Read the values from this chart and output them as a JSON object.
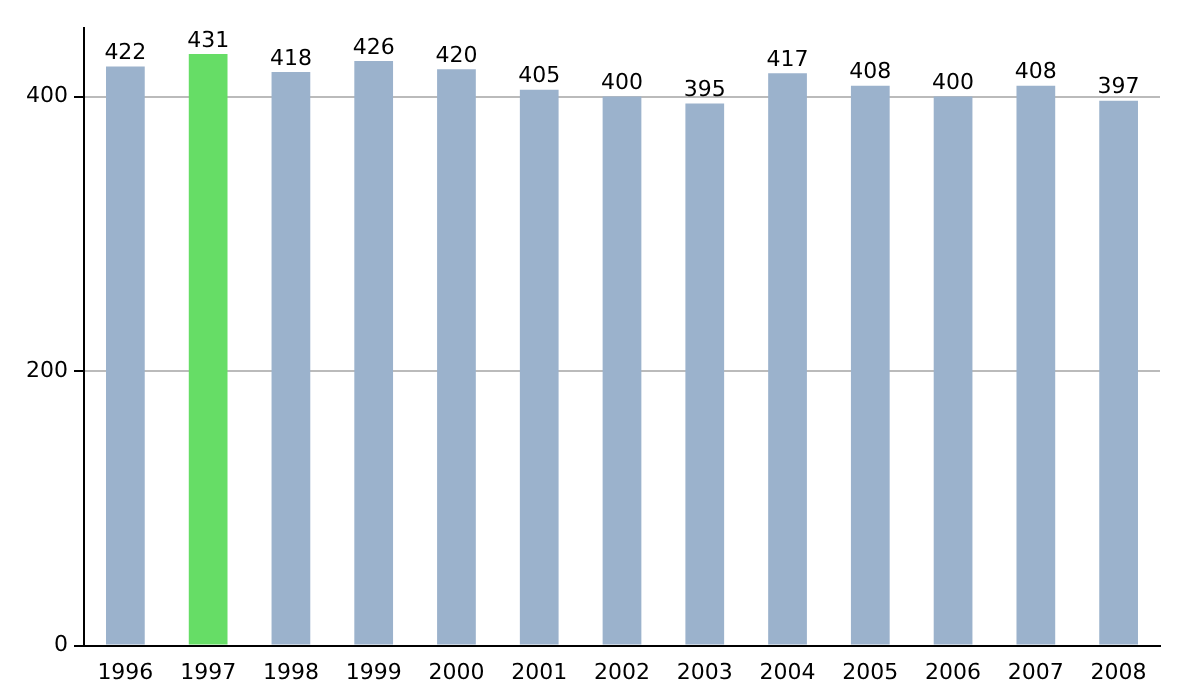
{
  "chart_data": {
    "type": "bar",
    "categories": [
      "1996",
      "1997",
      "1998",
      "1999",
      "2000",
      "2001",
      "2002",
      "2003",
      "2004",
      "2005",
      "2006",
      "2007",
      "2008"
    ],
    "values": [
      422,
      431,
      418,
      426,
      420,
      405,
      400,
      395,
      417,
      408,
      400,
      408,
      397
    ],
    "colors": [
      "#9bb2cc",
      "#66dd66",
      "#9bb2cc",
      "#9bb2cc",
      "#9bb2cc",
      "#9bb2cc",
      "#9bb2cc",
      "#9bb2cc",
      "#9bb2cc",
      "#9bb2cc",
      "#9bb2cc",
      "#9bb2cc",
      "#9bb2cc"
    ],
    "ylim": [
      0,
      450
    ],
    "yticks": [
      0,
      200,
      400
    ],
    "grid": "y",
    "data_labels": true
  }
}
